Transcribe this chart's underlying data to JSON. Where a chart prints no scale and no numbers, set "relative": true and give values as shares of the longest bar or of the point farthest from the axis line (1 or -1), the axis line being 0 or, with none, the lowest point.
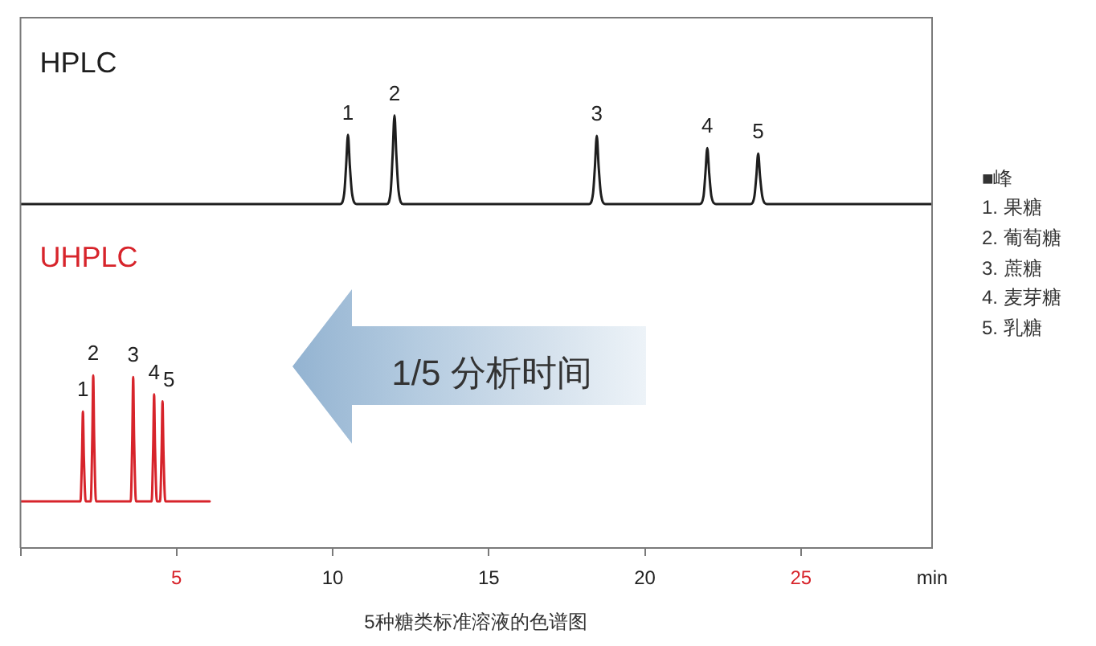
{
  "chart_data": [
    {
      "type": "line",
      "x": [
        0,
        10.24,
        10.37,
        10.43,
        10.49,
        10.55,
        10.62,
        10.77,
        11.73,
        11.86,
        11.92,
        11.98,
        12.04,
        12.11,
        12.26,
        18.21,
        18.34,
        18.4,
        18.46,
        18.52,
        18.59,
        18.74,
        21.75,
        21.88,
        21.94,
        22.0,
        22.06,
        22.13,
        22.28,
        23.38,
        23.51,
        23.57,
        23.63,
        23.69,
        23.76,
        23.91,
        29.2
      ],
      "series": [
        {
          "name": "HPLC",
          "color": "#1e1e1e",
          "values": [
            0,
            0,
            0.12,
            0.43,
            0.78,
            0.43,
            0.12,
            0,
            0,
            0.15,
            0.55,
            1,
            0.55,
            0.15,
            0,
            0,
            0.12,
            0.42,
            0.77,
            0.42,
            0.12,
            0,
            0,
            0.09,
            0.35,
            0.63,
            0.35,
            0.09,
            0,
            0,
            0.09,
            0.31,
            0.57,
            0.31,
            0.09,
            0,
            0
          ]
        }
      ],
      "relative": true,
      "xlim": [
        0,
        29.2
      ],
      "tick_labels": false,
      "annotations": [
        {
          "text": "1",
          "x": 10.49,
          "y": 0.78
        },
        {
          "text": "2",
          "x": 11.98,
          "y": 1
        },
        {
          "text": "3",
          "x": 18.46,
          "y": 0.77
        },
        {
          "text": "4",
          "x": 22.0,
          "y": 0.63
        },
        {
          "text": "5",
          "x": 23.63,
          "y": 0.57
        },
        "■峰",
        "1. 果糖",
        "2. 葡萄糖",
        "3. 蔗糖",
        "4. 麦芽糖",
        "5. 乳糖"
      ]
    },
    {
      "type": "line",
      "x": [
        0,
        1.92,
        1.97,
        2.0,
        2.03,
        2.09,
        2.25,
        2.3,
        2.33,
        2.36,
        2.42,
        3.53,
        3.58,
        3.61,
        3.64,
        3.7,
        4.2,
        4.25,
        4.28,
        4.31,
        4.37,
        4.47,
        4.52,
        4.55,
        4.58,
        4.64,
        6.06
      ],
      "series": [
        {
          "name": "UHPLC",
          "color": "#d7242b",
          "values": [
            0.27,
            0.27,
            0.53,
            0.79,
            0.53,
            0.27,
            0.27,
            0.64,
            1,
            0.64,
            0.27,
            0.27,
            0.63,
            0.99,
            0.63,
            0.27,
            0.27,
            0.58,
            0.89,
            0.58,
            0.27,
            0.27,
            0.56,
            0.85,
            0.56,
            0.27,
            0.27
          ]
        }
      ],
      "relative": true,
      "xlim": [
        0,
        29.2
      ],
      "xticks": [
        {
          "value": 0,
          "label": null
        },
        5,
        10,
        15,
        20,
        25
      ],
      "xlabel": "min",
      "tick_labels": "x",
      "annotations": [
        {
          "text": "1",
          "x": 2.0,
          "y": 0.79
        },
        {
          "text": "2",
          "x": 2.33,
          "y": 1
        },
        {
          "text": "3",
          "x": 3.61,
          "y": 0.99
        },
        {
          "text": "4",
          "x": 4.28,
          "y": 0.89
        },
        {
          "text": "5",
          "x": 4.55,
          "y": 0.85
        },
        "1/5 分析时间",
        "5种糖类标准溶液的色谱图"
      ]
    }
  ]
}
